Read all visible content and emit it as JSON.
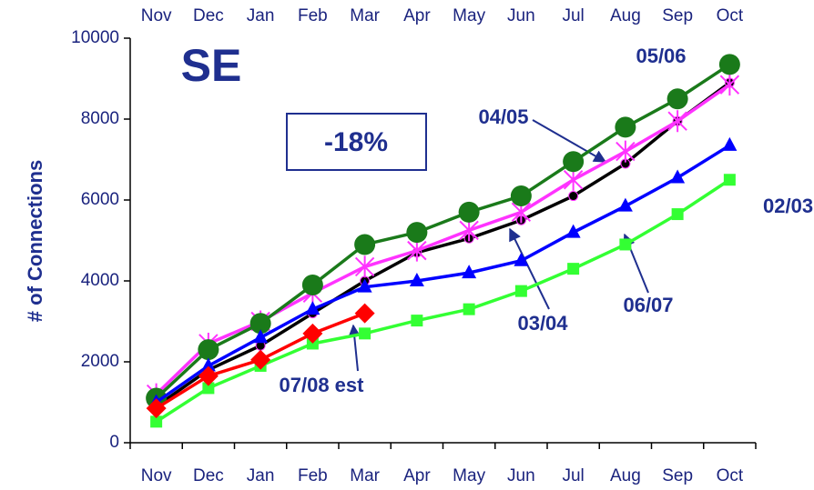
{
  "chart_data": {
    "type": "line",
    "title": "SE",
    "annotation": "-18%",
    "y_label": "# of Connections",
    "categories": [
      "Nov",
      "Dec",
      "Jan",
      "Feb",
      "Mar",
      "Apr",
      "May",
      "Jun",
      "Jul",
      "Aug",
      "Sep",
      "Oct"
    ],
    "ylim": [
      0,
      10000
    ],
    "yticks": [
      0,
      2000,
      4000,
      6000,
      8000,
      10000
    ],
    "series": [
      {
        "name": "02/03",
        "color": "#33ff33",
        "marker": "square",
        "values": [
          520,
          1350,
          1900,
          2450,
          2700,
          3020,
          3300,
          3750,
          4300,
          4900,
          5650,
          6500
        ]
      },
      {
        "name": "03/04",
        "color": "#000000",
        "marker": "dot",
        "values": [
          900,
          1800,
          2400,
          3200,
          4000,
          4700,
          5050,
          5500,
          6100,
          6900,
          7950,
          8900
        ]
      },
      {
        "name": "04/05",
        "color": "#ff33ff",
        "marker": "star",
        "values": [
          1200,
          2450,
          3000,
          3700,
          4350,
          4750,
          5250,
          5700,
          6500,
          7200,
          7950,
          8850
        ]
      },
      {
        "name": "05/06",
        "color": "#1a7a1a",
        "marker": "circle",
        "values": [
          1100,
          2300,
          2950,
          3900,
          4900,
          5200,
          5700,
          6100,
          6950,
          7800,
          8500,
          9350
        ]
      },
      {
        "name": "06/07",
        "color": "#0000ff",
        "marker": "triangle",
        "values": [
          1000,
          1900,
          2600,
          3300,
          3850,
          4000,
          4200,
          4500,
          5200,
          5850,
          6550,
          7350
        ]
      },
      {
        "name": "07/08 est",
        "color": "#ff0000",
        "marker": "diamond",
        "values": [
          850,
          1650,
          2050,
          2700,
          3200,
          null,
          null,
          null,
          null,
          null,
          null,
          null
        ]
      }
    ]
  }
}
